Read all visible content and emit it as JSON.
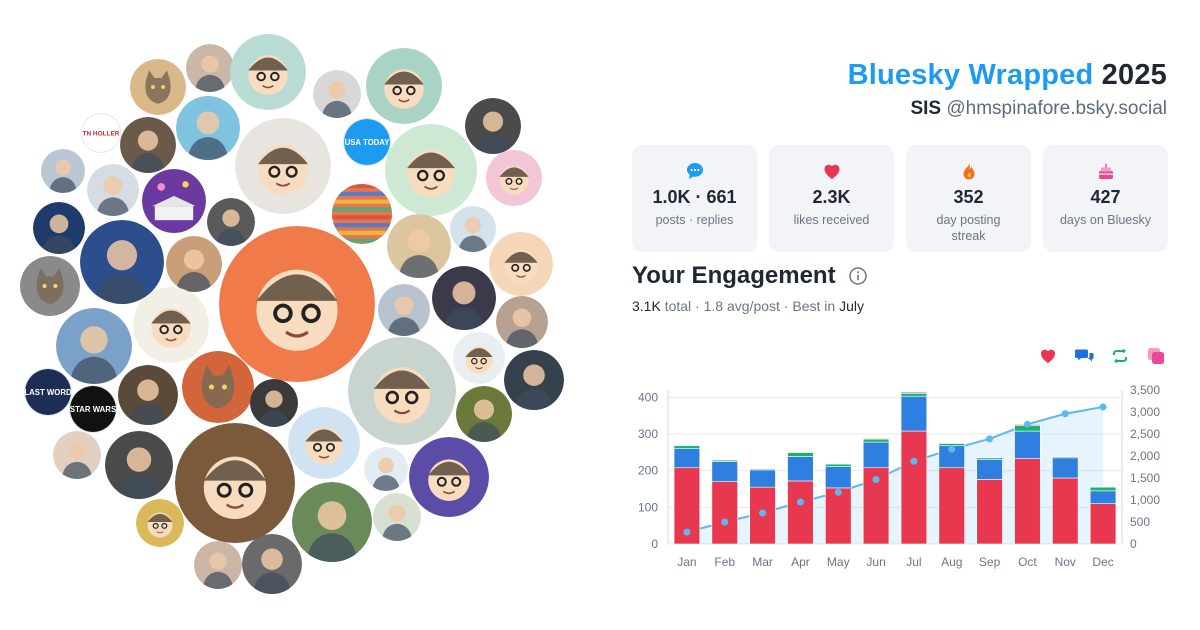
{
  "header": {
    "brand": "Bluesky Wrapped",
    "year": "2025",
    "display_name": "SIS",
    "handle": "@hmspinafore.bsky.social"
  },
  "stats": [
    {
      "icon": "speech-bubble-icon",
      "color": "#1d9bf0",
      "value": "1.0K · 661",
      "label": "posts · replies"
    },
    {
      "icon": "heart-icon",
      "color": "#e8384f",
      "value": "2.3K",
      "label": "likes received"
    },
    {
      "icon": "flame-icon",
      "color": "#ff6a1a",
      "value": "352",
      "label": "day posting streak"
    },
    {
      "icon": "cake-icon",
      "color": "#e8479a",
      "value": "427",
      "label": "days on Bluesky"
    }
  ],
  "engagement": {
    "title": "Your Engagement",
    "total": "3.1K",
    "total_word": "total",
    "avg": "1.8 avg/post",
    "best_prefix": "Best in",
    "best_month": "July"
  },
  "legend": [
    {
      "icon": "heart-icon",
      "color": "#e8384f"
    },
    {
      "icon": "reply-icon",
      "color": "#1d6fe0"
    },
    {
      "icon": "repost-icon",
      "color": "#12b76a"
    },
    {
      "icon": "quote-icon",
      "color": "#e8479a"
    }
  ],
  "avatars": [
    {
      "label": "TN HOLLER",
      "bg": "#ffffff",
      "fg": "#d0262e"
    },
    {
      "label": "USA TODAY",
      "bg": "#1d9bf0",
      "fg": "#ffffff"
    },
    {
      "label": "LAST WORD",
      "bg": "#1e2d55",
      "fg": "#ffffff"
    },
    {
      "label": "STAR WARS",
      "bg": "#111111",
      "fg": "#ffffff"
    }
  ],
  "chart_data": {
    "type": "bar",
    "stacked": true,
    "categories": [
      "Jan",
      "Feb",
      "Mar",
      "Apr",
      "May",
      "Jun",
      "Jul",
      "Aug",
      "Sep",
      "Oct",
      "Nov",
      "Dec"
    ],
    "series": [
      {
        "color": "#e8384f",
        "values": [
          208,
          170,
          155,
          172,
          153,
          208,
          308,
          208,
          176,
          233,
          180,
          110
        ]
      },
      {
        "color": "#2f7fe0",
        "values": [
          52,
          55,
          47,
          67,
          58,
          70,
          95,
          60,
          55,
          75,
          55,
          35
        ]
      },
      {
        "color": "#12b76a",
        "values": [
          8,
          4,
          3,
          10,
          7,
          8,
          8,
          6,
          4,
          15,
          3,
          10
        ]
      },
      {
        "color": "#e8479a",
        "values": [
          2,
          1,
          1,
          2,
          1,
          2,
          3,
          2,
          1,
          3,
          1,
          1
        ]
      }
    ],
    "cumulative": {
      "name": "cumulative",
      "color": "#5cb8f0",
      "values": [
        270,
        500,
        705,
        955,
        1175,
        1465,
        1880,
        2155,
        2390,
        2720,
        2960,
        3115
      ]
    },
    "y_left": {
      "min": 0,
      "max": 420,
      "ticks": [
        0,
        100,
        200,
        300,
        400
      ]
    },
    "y_right": {
      "min": 0,
      "max": 3500,
      "ticks": [
        "0",
        "500",
        "1,000",
        "1,500",
        "2,000",
        "2,500",
        "3,000",
        "3,500"
      ]
    },
    "grid": true
  }
}
